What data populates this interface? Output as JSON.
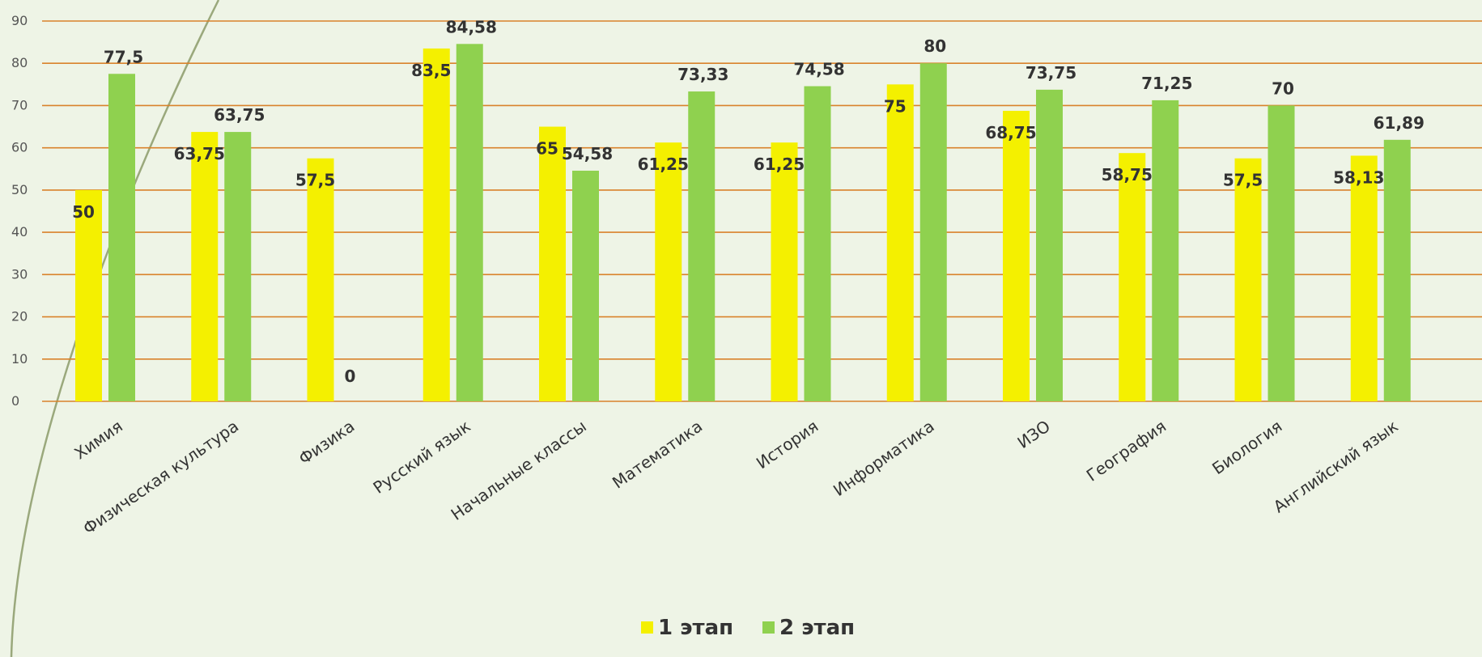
{
  "chart_data": {
    "type": "bar",
    "categories": [
      "Химия",
      "Физическая культура",
      "Физика",
      "Русский язык",
      "Начальные классы",
      "Математика",
      "История",
      "Информатика",
      "ИЗО",
      "География",
      "Биология",
      "Английский язык"
    ],
    "series": [
      {
        "name": "1 этап",
        "color": "#f4f000",
        "values": [
          50,
          63.75,
          57.5,
          83.5,
          65,
          61.25,
          61.25,
          75,
          68.75,
          58.75,
          57.5,
          58.13
        ],
        "labels": [
          "50",
          "63,75",
          "57,5",
          "83,5",
          "65",
          "61,25",
          "61,25",
          "75",
          "68,75",
          "58,75",
          "57,5",
          "58,13"
        ]
      },
      {
        "name": "2 этап",
        "color": "#8fd14f",
        "values": [
          77.5,
          63.75,
          0,
          84.58,
          54.58,
          73.33,
          74.58,
          80,
          73.75,
          71.25,
          70,
          61.89
        ],
        "labels": [
          "77,5",
          "63,75",
          "0",
          "84,58",
          "54,58",
          "73,33",
          "74,58",
          "80",
          "73,75",
          "71,25",
          "70",
          "61,89"
        ]
      }
    ],
    "ylim": [
      0,
      90
    ],
    "yticks": [
      "0",
      "10",
      "20",
      "30",
      "40",
      "50",
      "60",
      "70",
      "80",
      "90"
    ],
    "grid": true,
    "gridColor": "#d9822b",
    "legend_position": "bottom-center"
  }
}
